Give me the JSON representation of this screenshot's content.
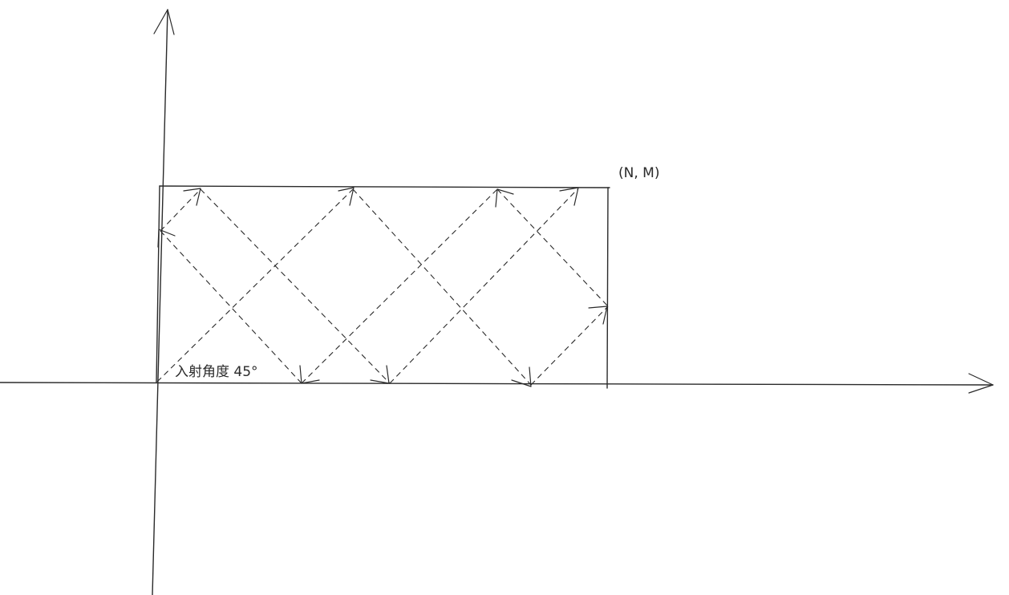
{
  "corner_label": "(N, M)",
  "angle_label": "入射角度 45°"
}
